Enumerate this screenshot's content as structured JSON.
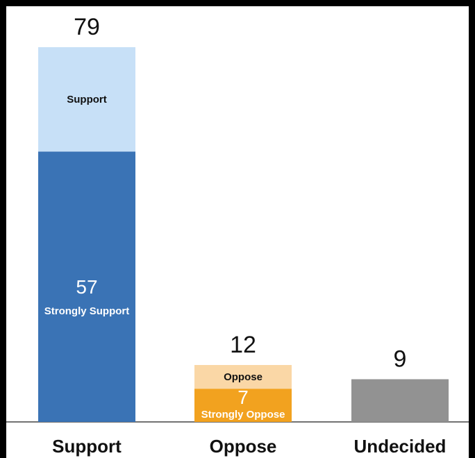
{
  "chart_data": {
    "type": "bar",
    "categories": [
      "Support",
      "Oppose",
      "Undecided"
    ],
    "totals": [
      79,
      12,
      9
    ],
    "stacks": [
      [
        {
          "name": "Strongly Support",
          "value": 57,
          "color": "#3a73b5",
          "label": "Strongly Support",
          "value_label": "57",
          "text": "light"
        },
        {
          "name": "Support",
          "value": 22,
          "color": "#c7e0f7",
          "label": "Support",
          "value_label": "",
          "text": "dark"
        }
      ],
      [
        {
          "name": "Strongly Oppose",
          "value": 7,
          "color": "#f2a21f",
          "label": "Strongly Oppose",
          "value_label": "7",
          "text": "light"
        },
        {
          "name": "Oppose",
          "value": 5,
          "color": "#fad7a6",
          "label": "Oppose",
          "value_label": "",
          "text": "dark"
        }
      ],
      [
        {
          "name": "Undecided",
          "value": 9,
          "color": "#929292",
          "label": "",
          "value_label": "",
          "text": "dark"
        }
      ]
    ],
    "ylim": [
      0,
      79
    ],
    "grid": false,
    "title": "",
    "xlabel": "",
    "ylabel": ""
  }
}
